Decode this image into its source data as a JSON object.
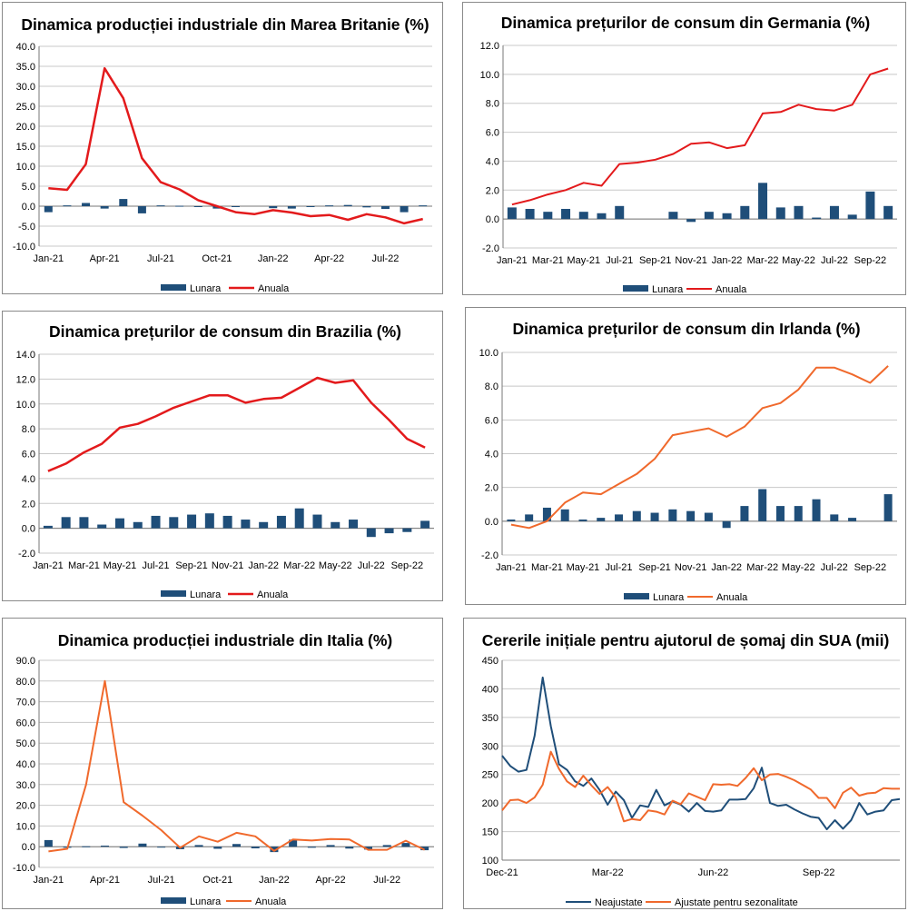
{
  "colors": {
    "bar": "#1f4e79",
    "red": "#e31a1c",
    "orange": "#f0692c",
    "navy": "#1f4e79",
    "grid": "#c8c8c8"
  },
  "chart_data": [
    {
      "type": "bar+line",
      "title": "Dinamica producției industriale din Marea Britanie (%)",
      "ylim": [
        -10,
        40
      ],
      "yticks": [
        "-10.0",
        "-5.0",
        "0.0",
        "5.0",
        "10.0",
        "15.0",
        "20.0",
        "25.0",
        "30.0",
        "35.0",
        "40.0"
      ],
      "xtick_labels": [
        "Jan-21",
        "Apr-21",
        "Jul-21",
        "Oct-21",
        "Jan-22",
        "Apr-22",
        "Jul-22"
      ],
      "xtick_index": [
        0,
        3,
        6,
        9,
        12,
        15,
        18
      ],
      "n": 21,
      "series": [
        {
          "name": "Lunara",
          "kind": "bar",
          "values": [
            -1.5,
            0.2,
            0.8,
            -0.6,
            1.8,
            -1.8,
            0.2,
            0.1,
            -0.2,
            -0.6,
            -0.1,
            0.0,
            -0.5,
            -0.6,
            -0.1,
            0.2,
            0.3,
            -0.3,
            -0.7,
            -1.5,
            0.2
          ]
        },
        {
          "name": "Anuala",
          "kind": "line",
          "values": [
            4.5,
            4.1,
            10.5,
            34.5,
            27.0,
            12.0,
            6.0,
            4.2,
            1.5,
            0.0,
            -1.5,
            -2.0,
            -1.0,
            -1.6,
            -2.5,
            -2.2,
            -3.4,
            -2.0,
            -2.8,
            -4.3,
            -3.2
          ]
        }
      ]
    },
    {
      "type": "bar+line",
      "title": "Dinamica prețurilor de consum din Germania (%)",
      "ylim": [
        -2,
        12
      ],
      "yticks": [
        "-2.0",
        "0.0",
        "2.0",
        "4.0",
        "6.0",
        "8.0",
        "10.0",
        "12.0"
      ],
      "xtick_labels": [
        "Jan-21",
        "Mar-21",
        "May-21",
        "Jul-21",
        "Sep-21",
        "Nov-21",
        "Jan-22",
        "Mar-22",
        "May-22",
        "Jul-22",
        "Sep-22"
      ],
      "xtick_index": [
        0,
        2,
        4,
        6,
        8,
        10,
        12,
        14,
        16,
        18,
        20
      ],
      "n": 22,
      "series": [
        {
          "name": "Lunara",
          "kind": "bar",
          "values": [
            0.8,
            0.7,
            0.5,
            0.7,
            0.5,
            0.4,
            0.9,
            0.0,
            0.0,
            0.5,
            -0.2,
            0.5,
            0.4,
            0.9,
            2.5,
            0.8,
            0.9,
            0.1,
            0.9,
            0.3,
            1.9,
            0.9
          ]
        },
        {
          "name": "Anuala",
          "kind": "line",
          "values": [
            1.0,
            1.3,
            1.7,
            2.0,
            2.5,
            2.3,
            3.8,
            3.9,
            4.1,
            4.5,
            5.2,
            5.3,
            4.9,
            5.1,
            7.3,
            7.4,
            7.9,
            7.6,
            7.5,
            7.9,
            10.0,
            10.4
          ]
        }
      ]
    },
    {
      "type": "bar+line",
      "title": "Dinamica prețurilor de consum din Brazilia (%)",
      "ylim": [
        -2,
        14
      ],
      "yticks": [
        "-2.0",
        "0.0",
        "2.0",
        "4.0",
        "6.0",
        "8.0",
        "10.0",
        "12.0",
        "14.0"
      ],
      "xtick_labels": [
        "Jan-21",
        "Mar-21",
        "May-21",
        "Jul-21",
        "Sep-21",
        "Nov-21",
        "Jan-22",
        "Mar-22",
        "May-22",
        "Jul-22",
        "Sep-22"
      ],
      "xtick_index": [
        0,
        2,
        4,
        6,
        8,
        10,
        12,
        14,
        16,
        18,
        20
      ],
      "n": 22,
      "series": [
        {
          "name": "Lunara",
          "kind": "bar",
          "values": [
            0.2,
            0.9,
            0.9,
            0.3,
            0.8,
            0.5,
            1.0,
            0.9,
            1.1,
            1.2,
            1.0,
            0.7,
            0.5,
            1.0,
            1.6,
            1.1,
            0.5,
            0.7,
            -0.7,
            -0.4,
            -0.3,
            0.6
          ]
        },
        {
          "name": "Anuala",
          "kind": "line",
          "values": [
            4.6,
            5.2,
            6.1,
            6.8,
            8.1,
            8.4,
            9.0,
            9.7,
            10.2,
            10.7,
            10.7,
            10.1,
            10.4,
            10.5,
            11.3,
            12.1,
            11.7,
            11.9,
            10.1,
            8.7,
            7.2,
            6.5
          ]
        }
      ]
    },
    {
      "type": "bar+line",
      "title": "Dinamica prețurilor de consum din Irlanda (%)",
      "ylim": [
        -2,
        10
      ],
      "yticks": [
        "-2.0",
        "0.0",
        "2.0",
        "4.0",
        "6.0",
        "8.0",
        "10.0"
      ],
      "xtick_labels": [
        "Jan-21",
        "Mar-21",
        "May-21",
        "Jul-21",
        "Sep-21",
        "Nov-21",
        "Jan-22",
        "Mar-22",
        "May-22",
        "Jul-22",
        "Sep-22"
      ],
      "xtick_index": [
        0,
        2,
        4,
        6,
        8,
        10,
        12,
        14,
        16,
        18,
        20
      ],
      "n": 22,
      "series": [
        {
          "name": "Lunara",
          "kind": "bar",
          "values": [
            0.1,
            0.4,
            0.8,
            0.7,
            0.1,
            0.2,
            0.4,
            0.6,
            0.5,
            0.7,
            0.6,
            0.5,
            -0.4,
            0.9,
            1.9,
            0.9,
            0.9,
            1.3,
            0.4,
            0.2,
            0.0,
            1.6
          ]
        },
        {
          "name": "Anuala",
          "kind": "line",
          "values": [
            -0.2,
            -0.4,
            0.0,
            1.1,
            1.7,
            1.6,
            2.2,
            2.8,
            3.7,
            5.1,
            5.3,
            5.5,
            5.0,
            5.6,
            6.7,
            7.0,
            7.8,
            9.1,
            9.1,
            8.7,
            8.2,
            9.2
          ]
        }
      ]
    },
    {
      "type": "bar+line",
      "title": "Dinamica producției industriale din Italia (%)",
      "ylim": [
        -10,
        90
      ],
      "yticks": [
        "-10.0",
        "0.0",
        "10.0",
        "20.0",
        "30.0",
        "40.0",
        "50.0",
        "60.0",
        "70.0",
        "80.0",
        "90.0"
      ],
      "xtick_labels": [
        "Jan-21",
        "Apr-21",
        "Jul-21",
        "Oct-21",
        "Jan-22",
        "Apr-22",
        "Jul-22"
      ],
      "xtick_index": [
        0,
        3,
        6,
        9,
        12,
        15,
        18
      ],
      "n": 21,
      "series": [
        {
          "name": "Lunara",
          "kind": "bar",
          "values": [
            3.2,
            -0.5,
            0.2,
            0.5,
            -0.6,
            1.5,
            -0.3,
            -1.2,
            0.8,
            -1.0,
            1.3,
            -0.8,
            -2.6,
            3.4,
            -0.5,
            0.8,
            -0.9,
            -1.4,
            0.8,
            1.8,
            -1.7
          ]
        },
        {
          "name": "Anuala",
          "kind": "line",
          "values": [
            -2.3,
            -1.0,
            30.0,
            80.0,
            21.5,
            15.0,
            8.0,
            -0.5,
            5.0,
            2.4,
            6.7,
            5.0,
            -2.0,
            3.5,
            3.0,
            3.7,
            3.5,
            -1.5,
            -1.5,
            2.9,
            -1.5
          ]
        }
      ]
    },
    {
      "type": "line",
      "title": "Cererile inițiale pentru ajutorul de șomaj din SUA (mii)",
      "ylim": [
        100,
        450
      ],
      "yticks": [
        "100",
        "150",
        "200",
        "250",
        "300",
        "350",
        "400",
        "450"
      ],
      "xtick_labels": [
        "Dec-21",
        "Mar-22",
        "Jun-22",
        "Sep-22"
      ],
      "xtick_index": [
        0,
        13,
        26,
        39
      ],
      "n": 50,
      "series": [
        {
          "name": "Neajustate",
          "kind": "line",
          "values": [
            283,
            265,
            255,
            258,
            318,
            420,
            335,
            268,
            258,
            238,
            230,
            243,
            223,
            197,
            220,
            205,
            174,
            196,
            193,
            223,
            196,
            203,
            197,
            185,
            200,
            186,
            185,
            187,
            206,
            206,
            207,
            226,
            262,
            200,
            195,
            197,
            189,
            182,
            176,
            174,
            154,
            170,
            155,
            170,
            200,
            180,
            185,
            187,
            205,
            207
          ]
        },
        {
          "name": "Ajustate pentru sezonalitate",
          "kind": "line",
          "values": [
            187,
            205,
            206,
            200,
            210,
            232,
            290,
            260,
            238,
            228,
            248,
            231,
            216,
            228,
            210,
            168,
            172,
            170,
            187,
            185,
            180,
            204,
            198,
            217,
            211,
            205,
            233,
            232,
            233,
            230,
            244,
            261,
            240,
            250,
            251,
            246,
            240,
            232,
            224,
            209,
            209,
            191,
            218,
            227,
            213,
            217,
            218,
            226,
            225,
            225
          ]
        }
      ]
    }
  ]
}
